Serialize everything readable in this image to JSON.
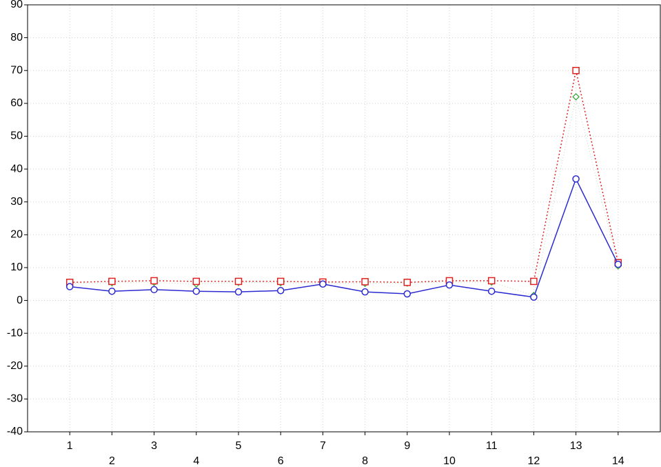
{
  "chart_data": {
    "type": "line",
    "categories": [
      "1",
      "2",
      "3",
      "4",
      "5",
      "6",
      "7",
      "8",
      "9",
      "10",
      "11",
      "12",
      "13",
      "14"
    ],
    "series": [
      {
        "color": "#2a2ad0",
        "marker": "circle",
        "linestyle": "solid",
        "values": [
          4.2,
          2.8,
          3.3,
          2.8,
          2.6,
          3.0,
          5.0,
          2.6,
          2.0,
          4.7,
          2.8,
          1.0,
          37,
          11
        ]
      },
      {
        "color": "#e02020",
        "marker": "square",
        "linestyle": "dotted",
        "values": [
          5.5,
          5.8,
          6.0,
          5.8,
          5.8,
          5.8,
          5.6,
          5.7,
          5.5,
          6.0,
          6.0,
          5.8,
          70,
          11.5
        ]
      },
      {
        "color": "#30a030",
        "marker": "diamond",
        "linestyle": "faint",
        "values": [
          5.2,
          5.4,
          5.5,
          5.0,
          5.5,
          5.4,
          5.2,
          5.2,
          5.3,
          5.6,
          5.6,
          1.5,
          62,
          10.5
        ]
      }
    ],
    "ylim": [
      -40,
      90
    ],
    "yticks": [
      -40,
      -30,
      -20,
      -10,
      0,
      10,
      20,
      30,
      40,
      50,
      60,
      70,
      80,
      90
    ],
    "grid": true
  }
}
